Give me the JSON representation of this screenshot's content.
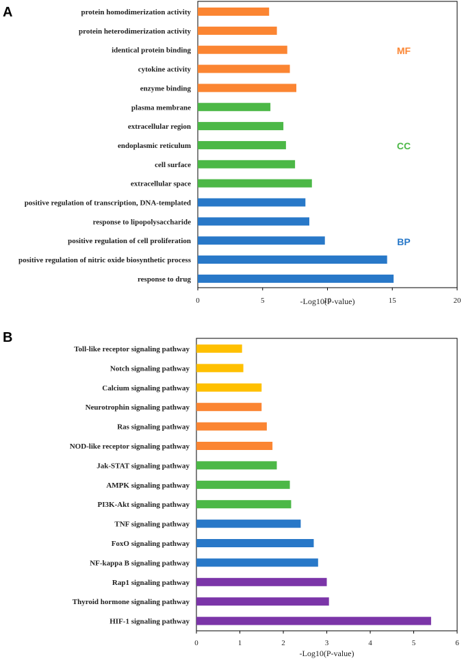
{
  "chart_data": [
    {
      "type": "bar",
      "orientation": "horizontal",
      "panel_label": "A",
      "xlabel": "-Log10(P-value)",
      "xlim": [
        0,
        20
      ],
      "xticks": [
        "0",
        "5",
        "10",
        "15",
        "20"
      ],
      "categories": [
        "protein homodimerization activity",
        "protein heterodimerization activity",
        "identical protein binding",
        "cytokine activity",
        "enzyme binding",
        "plasma membrane",
        "extracellular region",
        "endoplasmic reticulum",
        "cell surface",
        "extracellular space",
        "positive regulation of transcription, DNA-templated",
        "response to lipopolysaccharide",
        "positive regulation of cell proliferation",
        "positive regulation of nitric oxide biosynthetic process",
        "response to drug"
      ],
      "values": [
        5.5,
        6.1,
        6.9,
        7.1,
        7.6,
        5.6,
        6.6,
        6.8,
        7.5,
        8.8,
        8.3,
        8.6,
        9.8,
        14.6,
        15.1
      ],
      "groups": [
        "MF",
        "MF",
        "MF",
        "MF",
        "MF",
        "CC",
        "CC",
        "CC",
        "CC",
        "CC",
        "BP",
        "BP",
        "BP",
        "BP",
        "BP"
      ],
      "group_labels": [
        {
          "text": "MF",
          "color": "#FB8532"
        },
        {
          "text": "CC",
          "color": "#4CB847"
        },
        {
          "text": "BP",
          "color": "#2878C8"
        }
      ],
      "colors": {
        "MF": "#FB8532",
        "CC": "#4CB847",
        "BP": "#2878C8"
      }
    },
    {
      "type": "bar",
      "orientation": "horizontal",
      "panel_label": "B",
      "xlabel": "-Log10(P-value)",
      "xlim": [
        0,
        6
      ],
      "xticks": [
        "0",
        "1",
        "2",
        "3",
        "4",
        "5",
        "6"
      ],
      "categories": [
        "Toll-like receptor signaling pathway",
        "Notch signaling pathway",
        "Calcium signaling pathway",
        "Neurotrophin signaling pathway",
        "Ras signaling pathway",
        "NOD-like receptor signaling pathway",
        "Jak-STAT signaling pathway",
        "AMPK signaling pathway",
        "PI3K-Akt signaling pathway",
        "TNF signaling pathway",
        "FoxO signaling pathway",
        "NF-kappa B signaling pathway",
        "Rap1 signaling pathway",
        "Thyroid hormone signaling pathway",
        "HIF-1 signaling pathway"
      ],
      "values": [
        1.05,
        1.08,
        1.5,
        1.5,
        1.62,
        1.75,
        1.85,
        2.15,
        2.18,
        2.4,
        2.7,
        2.8,
        3.0,
        3.05,
        5.4
      ],
      "groups": [
        "g1",
        "g1",
        "g1",
        "g2",
        "g2",
        "g2",
        "g3",
        "g3",
        "g3",
        "g4",
        "g4",
        "g4",
        "g5",
        "g5",
        "g5"
      ],
      "colors": {
        "g1": "#FFC000",
        "g2": "#FB8532",
        "g3": "#4CB847",
        "g4": "#2878C8",
        "g5": "#7B35A8"
      }
    }
  ]
}
